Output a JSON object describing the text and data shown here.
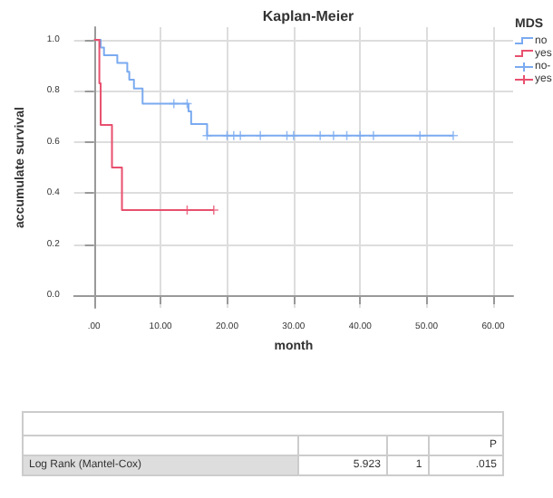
{
  "chart_data": {
    "type": "step",
    "title": "Kaplan-Meier",
    "xlabel": "month",
    "ylabel": "accumulate survival",
    "legend_title": "MDS",
    "xlim": [
      -3,
      63
    ],
    "xticks": [
      {
        "value": 0,
        "label": ".00"
      },
      {
        "value": 10,
        "label": "10.00"
      },
      {
        "value": 20,
        "label": "20.00"
      },
      {
        "value": 30,
        "label": "30.00"
      },
      {
        "value": 40,
        "label": "40.00"
      },
      {
        "value": 50,
        "label": "50.00"
      },
      {
        "value": 60,
        "label": "60.00"
      }
    ],
    "ylim": [
      -0.05,
      1.05
    ],
    "yticks": [
      {
        "value": 0,
        "label": "0.0"
      },
      {
        "value": 0.2,
        "label": "0.2"
      },
      {
        "value": 0.4,
        "label": "0.4"
      },
      {
        "value": 0.6,
        "label": "0.6"
      },
      {
        "value": 0.8,
        "label": "0.8"
      },
      {
        "value": 1,
        "label": "1.0"
      }
    ],
    "grid": true,
    "legend": "top right",
    "line_style": "solid",
    "series": [
      {
        "name": "no",
        "color": "#7aaaf0",
        "x": [
          0,
          1,
          1.5,
          3.5,
          5,
          5.3,
          6,
          7.3,
          14.2,
          14.6,
          17,
          54
        ],
        "values": [
          1,
          0.97,
          0.94,
          0.91,
          0.875,
          0.844,
          0.81,
          0.75,
          0.72,
          0.67,
          0.625,
          0.625
        ]
      },
      {
        "name": "yes",
        "color": "#e8506e",
        "x": [
          0,
          0.8,
          1,
          2.7,
          4.2,
          18
        ],
        "values": [
          1,
          0.83,
          0.667,
          0.5,
          0.333,
          0.333
        ]
      },
      {
        "name": "no-",
        "type": "scatter",
        "marker": "cross",
        "color": "#7aaaf0",
        "x": [
          12,
          14,
          17,
          20,
          21,
          22,
          25,
          29,
          30,
          34,
          36,
          38,
          40,
          42,
          49,
          54
        ],
        "values": [
          0.75,
          0.75,
          0.625,
          0.625,
          0.625,
          0.625,
          0.625,
          0.625,
          0.625,
          0.625,
          0.625,
          0.625,
          0.625,
          0.625,
          0.625,
          0.625
        ]
      },
      {
        "name": "yes",
        "type": "scatter",
        "marker": "cross",
        "color": "#e8506e",
        "x": [
          14,
          18
        ],
        "values": [
          0.333,
          0.333
        ]
      }
    ],
    "annotations": [
      "P",
      "Log Rank (Mantel-Cox)",
      "5.923",
      "1",
      ".015"
    ]
  }
}
